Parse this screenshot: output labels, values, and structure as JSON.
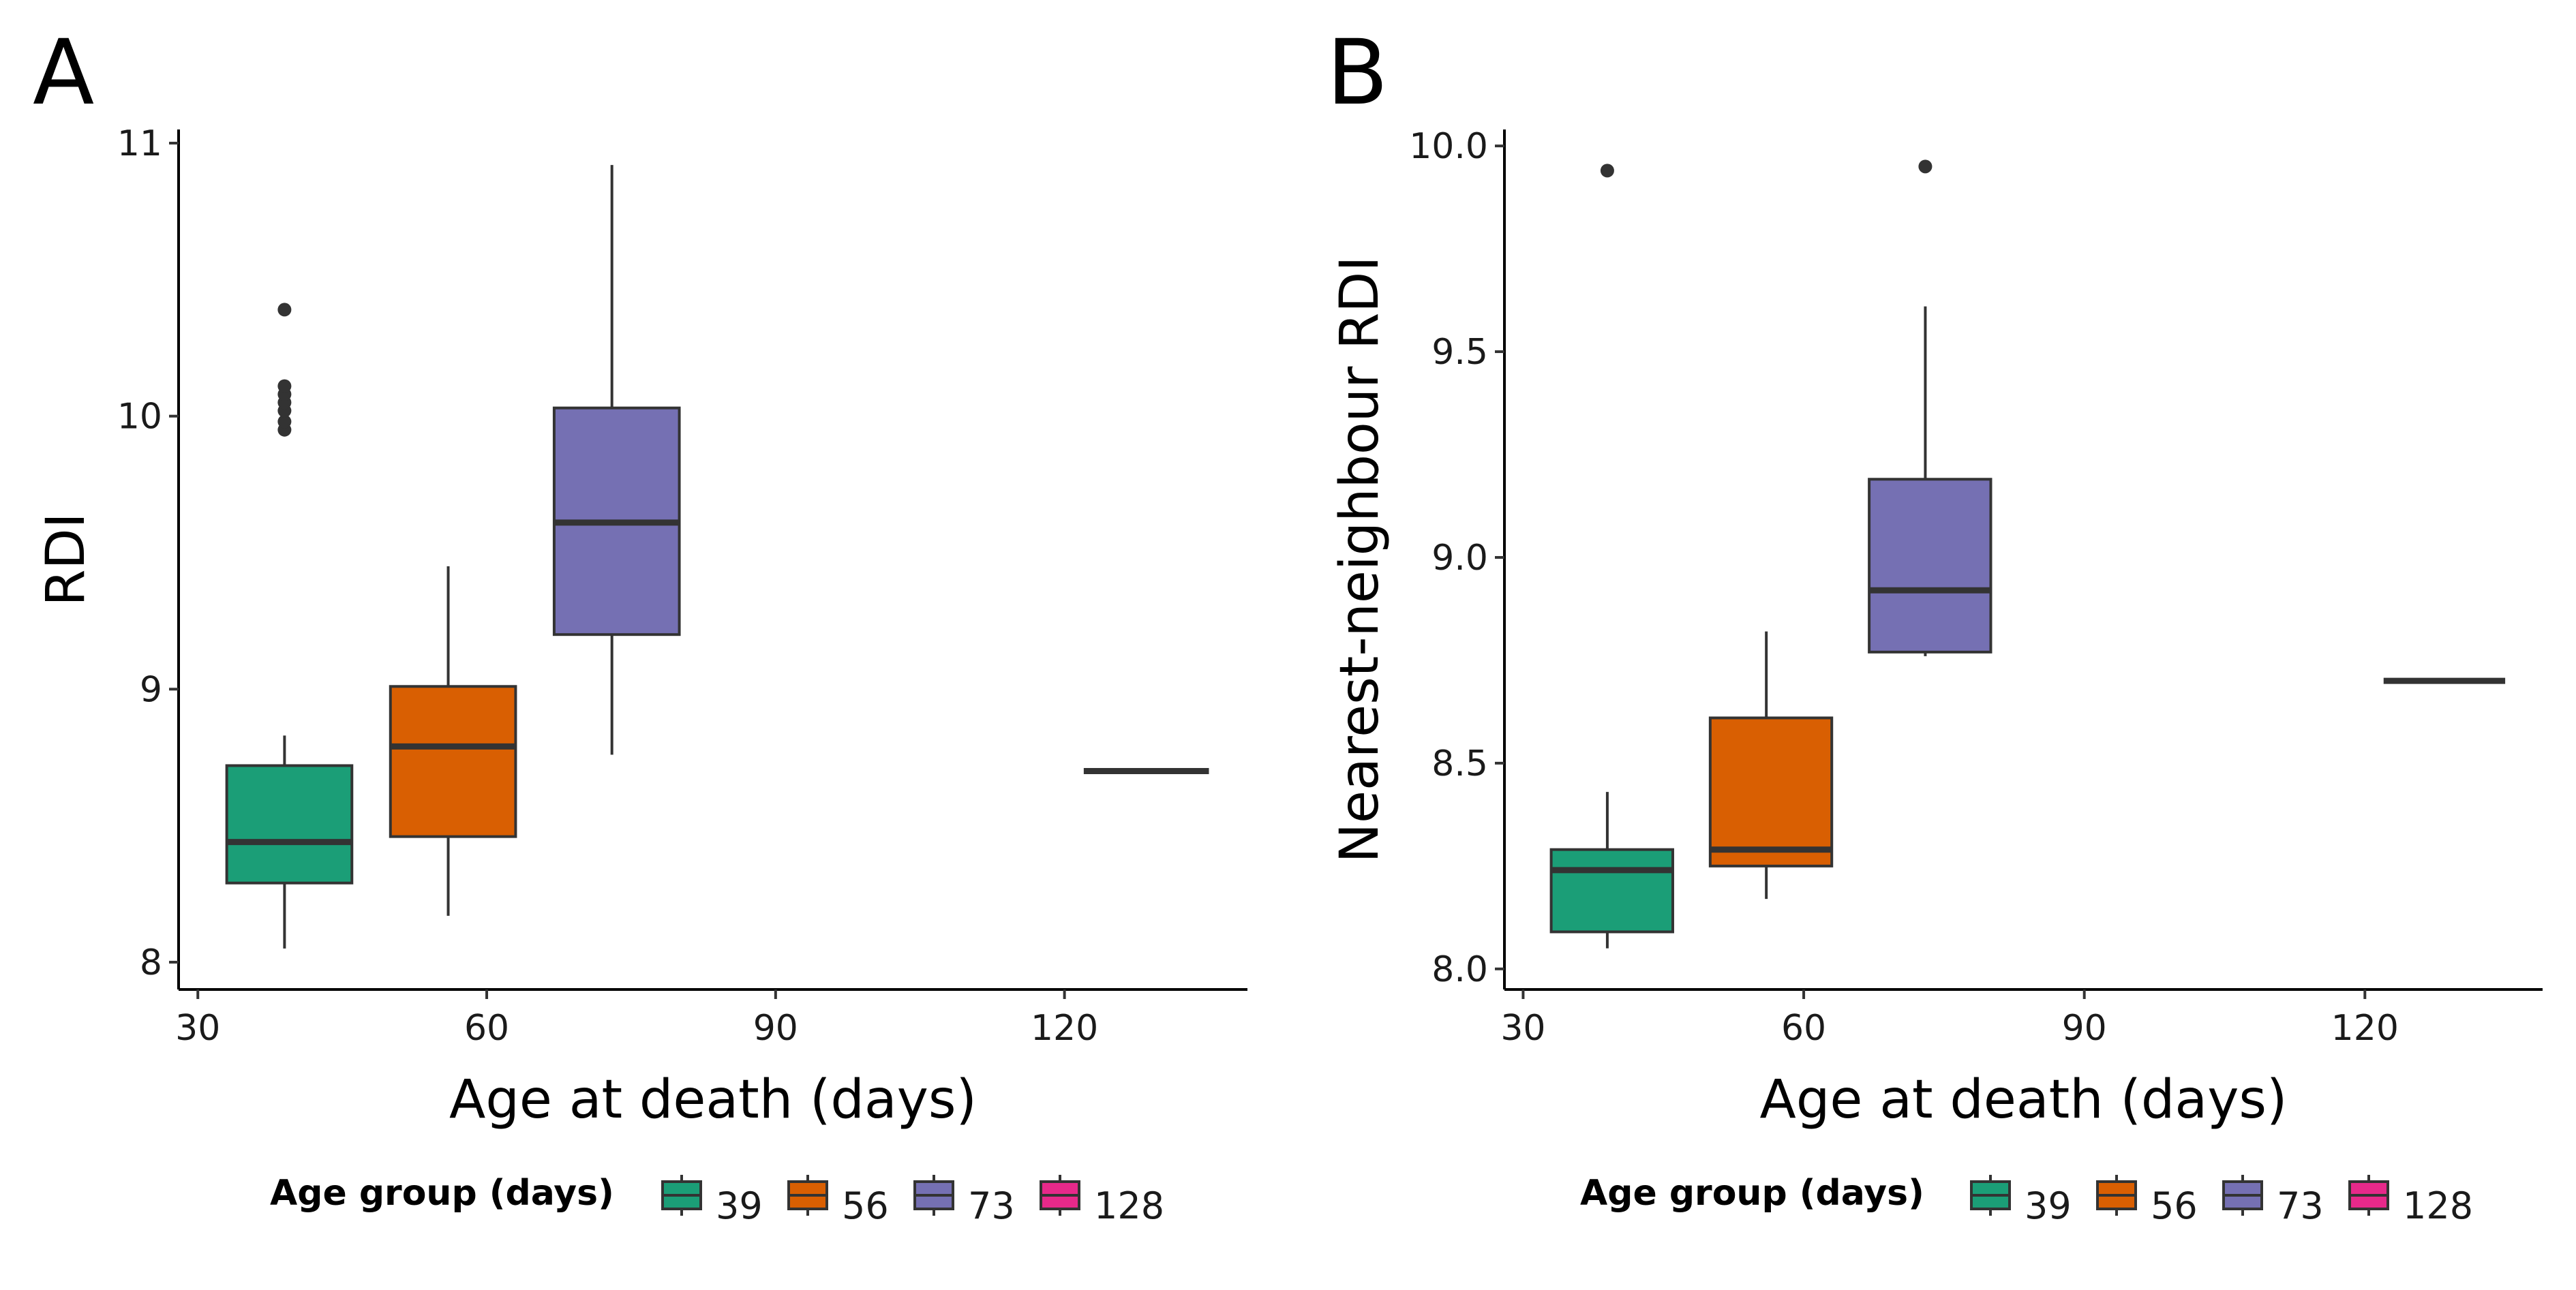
{
  "chart_data": [
    {
      "type": "box",
      "panel": "A",
      "xlabel": "Age at death (days)",
      "ylabel": "RDI",
      "xlim": [
        28,
        139
      ],
      "ylim": [
        7.9,
        11.05
      ],
      "xticks": [
        "30",
        "60",
        "90",
        "120"
      ],
      "yticks": [
        "8",
        "9",
        "10",
        "11"
      ],
      "grid": false,
      "legend_title": "Age group (days)",
      "legend_position": "bottom",
      "groups": [
        {
          "name": "39",
          "color": "#1b9e77",
          "x": 39,
          "xmin": 33,
          "xmax": 46,
          "whisker_low": 8.05,
          "q1": 8.29,
          "median": 8.44,
          "q3": 8.72,
          "whisker_high": 8.83,
          "outliers": [
            9.95,
            9.98,
            10.02,
            10.05,
            10.08,
            10.11,
            10.39
          ]
        },
        {
          "name": "56",
          "color": "#d95f02",
          "x": 56,
          "xmin": 50,
          "xmax": 63,
          "whisker_low": 8.17,
          "q1": 8.46,
          "median": 8.79,
          "q3": 9.01,
          "whisker_high": 9.45,
          "outliers": []
        },
        {
          "name": "73",
          "color": "#7570b3",
          "x": 73,
          "xmin": 67,
          "xmax": 80,
          "whisker_low": 8.76,
          "q1": 9.2,
          "median": 9.61,
          "q3": 10.03,
          "whisker_high": 10.92,
          "outliers": []
        },
        {
          "name": "128",
          "color": "#e7298a",
          "x": 128,
          "xmin": 122,
          "xmax": 135,
          "whisker_low": 8.7,
          "q1": 8.7,
          "median": 8.7,
          "q3": 8.7,
          "whisker_high": 8.7,
          "outliers": []
        }
      ]
    },
    {
      "type": "box",
      "panel": "B",
      "xlabel": "Age at death (days)",
      "ylabel": "Nearest-neighbour RDI",
      "xlim": [
        28,
        139
      ],
      "ylim": [
        7.95,
        10.04
      ],
      "xticks": [
        "30",
        "60",
        "90",
        "120"
      ],
      "yticks": [
        "8.0",
        "8.5",
        "9.0",
        "9.5",
        "10.0"
      ],
      "grid": false,
      "legend_title": "Age group (days)",
      "legend_position": "bottom",
      "groups": [
        {
          "name": "39",
          "color": "#1b9e77",
          "x": 39,
          "xmin": 33,
          "xmax": 46,
          "whisker_low": 8.05,
          "q1": 8.09,
          "median": 8.24,
          "q3": 8.29,
          "whisker_high": 8.43,
          "outliers": [
            9.94
          ]
        },
        {
          "name": "56",
          "color": "#d95f02",
          "x": 56,
          "xmin": 50,
          "xmax": 63,
          "whisker_low": 8.17,
          "q1": 8.25,
          "median": 8.29,
          "q3": 8.61,
          "whisker_high": 8.82,
          "outliers": []
        },
        {
          "name": "73",
          "color": "#7570b3",
          "x": 73,
          "xmin": 67,
          "xmax": 80,
          "whisker_low": 8.76,
          "q1": 8.77,
          "median": 8.92,
          "q3": 9.19,
          "whisker_high": 9.61,
          "outliers": [
            9.95
          ]
        },
        {
          "name": "128",
          "color": "#e7298a",
          "x": 128,
          "xmin": 122,
          "xmax": 135,
          "whisker_low": 8.7,
          "q1": 8.7,
          "median": 8.7,
          "q3": 8.7,
          "whisker_high": 8.7,
          "outliers": []
        }
      ]
    }
  ]
}
